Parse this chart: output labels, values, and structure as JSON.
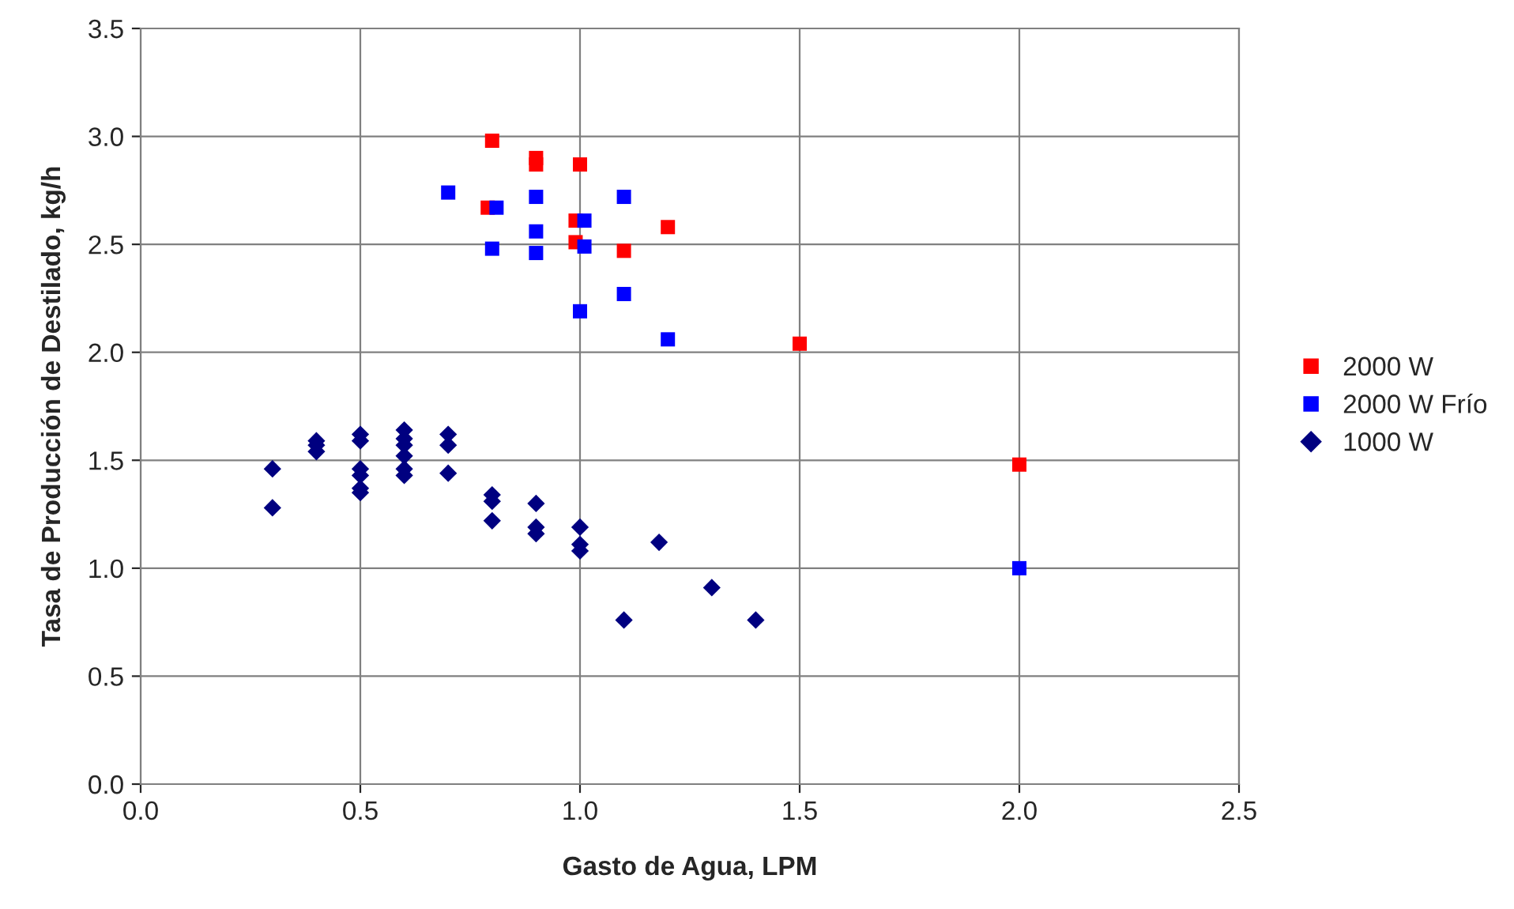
{
  "chart_data": {
    "type": "scatter",
    "xlabel": "Gasto de Agua, LPM",
    "ylabel": "Tasa de Producción de Destilado, kg/h",
    "xlim": [
      0,
      2.5
    ],
    "xticks": [
      {
        "value": 0,
        "label": "0.0"
      },
      {
        "value": 0.5,
        "label": "0.5"
      },
      {
        "value": 1,
        "label": "1.0"
      },
      {
        "value": 1.5,
        "label": "1.5"
      },
      {
        "value": 2,
        "label": "2.0"
      },
      {
        "value": 2.5,
        "label": "2.5"
      }
    ],
    "ylim": [
      0,
      3.5
    ],
    "yticks": [
      {
        "value": 0,
        "label": "0.0"
      },
      {
        "value": 0.5,
        "label": "0.5"
      },
      {
        "value": 1,
        "label": "1.0"
      },
      {
        "value": 1.5,
        "label": "1.5"
      },
      {
        "value": 2,
        "label": "2.0"
      },
      {
        "value": 2.5,
        "label": "2.5"
      },
      {
        "value": 3,
        "label": "3.0"
      },
      {
        "value": 3.5,
        "label": "3.5"
      }
    ],
    "grid": true,
    "legend": "right",
    "series": [
      {
        "name": "2000 W",
        "color": "#ff0000",
        "marker": "square",
        "x": [
          0.8,
          0.9,
          0.9,
          1.0,
          0.79,
          0.99,
          0.99,
          1.1,
          1.2,
          1.5,
          2.0
        ],
        "values": [
          2.98,
          2.9,
          2.87,
          2.87,
          2.67,
          2.61,
          2.51,
          2.47,
          2.58,
          2.04,
          1.48
        ]
      },
      {
        "name": "2000 W Frío",
        "color": "#0000ff",
        "marker": "square",
        "x": [
          0.7,
          0.81,
          0.8,
          0.9,
          0.9,
          0.9,
          1.01,
          1.01,
          1.1,
          1.1,
          1.0,
          1.2,
          2.0
        ],
        "values": [
          2.74,
          2.67,
          2.48,
          2.72,
          2.56,
          2.46,
          2.61,
          2.49,
          2.72,
          2.27,
          2.19,
          2.06,
          1.0
        ]
      },
      {
        "name": "1000 W",
        "color": "#000080",
        "marker": "diamond",
        "x": [
          0.3,
          0.3,
          0.4,
          0.4,
          0.4,
          0.5,
          0.5,
          0.5,
          0.5,
          0.5,
          0.5,
          0.6,
          0.6,
          0.6,
          0.6,
          0.6,
          0.6,
          0.7,
          0.7,
          0.7,
          0.8,
          0.8,
          0.8,
          0.9,
          0.9,
          0.9,
          1.0,
          1.0,
          1.0,
          1.18,
          1.1,
          1.3,
          1.4
        ],
        "values": [
          1.46,
          1.28,
          1.59,
          1.57,
          1.54,
          1.62,
          1.59,
          1.46,
          1.43,
          1.37,
          1.35,
          1.64,
          1.6,
          1.57,
          1.52,
          1.46,
          1.43,
          1.62,
          1.57,
          1.44,
          1.34,
          1.31,
          1.22,
          1.3,
          1.19,
          1.16,
          1.19,
          1.11,
          1.08,
          1.12,
          0.76,
          0.91,
          0.76
        ]
      }
    ]
  }
}
